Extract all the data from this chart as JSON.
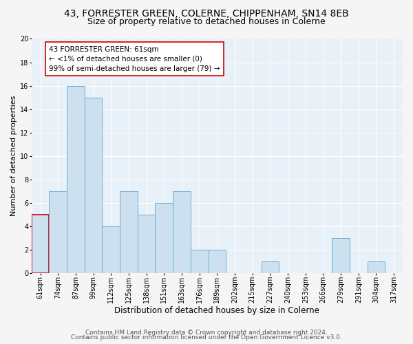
{
  "title": "43, FORRESTER GREEN, COLERNE, CHIPPENHAM, SN14 8EB",
  "subtitle": "Size of property relative to detached houses in Colerne",
  "xlabel": "Distribution of detached houses by size in Colerne",
  "ylabel": "Number of detached properties",
  "bin_labels": [
    "61sqm",
    "74sqm",
    "87sqm",
    "99sqm",
    "112sqm",
    "125sqm",
    "138sqm",
    "151sqm",
    "163sqm",
    "176sqm",
    "189sqm",
    "202sqm",
    "215sqm",
    "227sqm",
    "240sqm",
    "253sqm",
    "266sqm",
    "279sqm",
    "291sqm",
    "304sqm",
    "317sqm"
  ],
  "bar_heights": [
    5,
    7,
    16,
    15,
    4,
    7,
    5,
    6,
    7,
    2,
    2,
    0,
    0,
    1,
    0,
    0,
    0,
    3,
    0,
    1,
    0
  ],
  "bar_color": "#cce0f0",
  "bar_edge_color": "#6aaed6",
  "highlight_bar_index": 0,
  "highlight_edge_color": "#cc0000",
  "annotation_box_text": "43 FORRESTER GREEN: 61sqm\n← <1% of detached houses are smaller (0)\n99% of semi-detached houses are larger (79) →",
  "ylim": [
    0,
    20
  ],
  "yticks": [
    0,
    2,
    4,
    6,
    8,
    10,
    12,
    14,
    16,
    18,
    20
  ],
  "plot_bg_color": "#e8f0f8",
  "fig_bg_color": "#f5f5f5",
  "grid_color": "#ffffff",
  "footer_line1": "Contains HM Land Registry data © Crown copyright and database right 2024.",
  "footer_line2": "Contains public sector information licensed under the Open Government Licence v3.0.",
  "title_fontsize": 10,
  "subtitle_fontsize": 9,
  "xlabel_fontsize": 8.5,
  "ylabel_fontsize": 8,
  "tick_fontsize": 7,
  "footer_fontsize": 6.5,
  "annotation_fontsize": 7.5
}
